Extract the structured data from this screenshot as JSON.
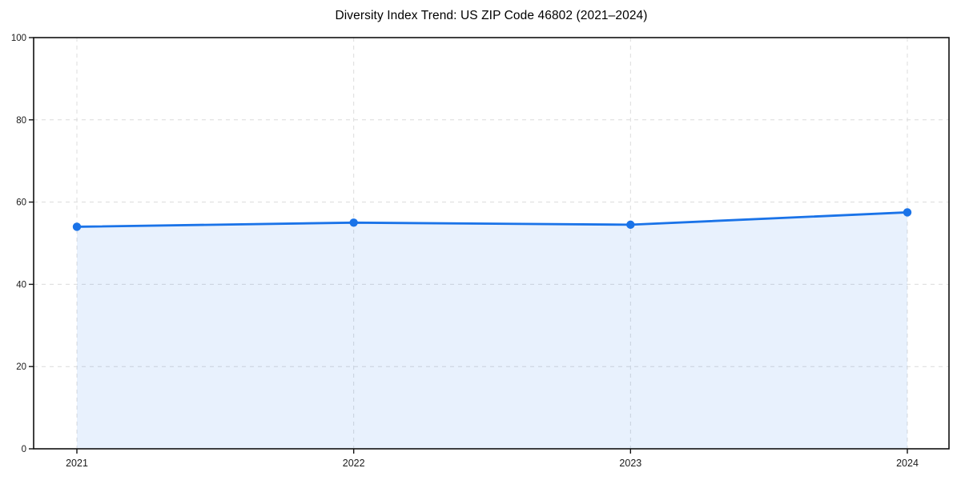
{
  "chart_data": {
    "type": "area",
    "title": "Diversity Index Trend: US ZIP Code 46802 (2021–2024)",
    "x": [
      2021,
      2022,
      2023,
      2024
    ],
    "xtick_labels": [
      "2021",
      "2022",
      "2023",
      "2024"
    ],
    "series": [
      {
        "name": "Diversity Index",
        "values": [
          54,
          55,
          54.5,
          57.5
        ]
      }
    ],
    "xlabel": "",
    "ylabel": "",
    "ylim": [
      0,
      100
    ],
    "yticks": [
      0,
      20,
      40,
      60,
      80,
      100
    ],
    "grid": "dashed",
    "legend": "none",
    "colors": {
      "line": "#1a73e8",
      "marker": "#1a73e8",
      "area_fill": "rgba(26,115,232,0.10)",
      "grid": "#dcdcdc",
      "spine": "#111111",
      "tick_text": "#1a1a1a",
      "title_text": "#000000",
      "background": "#ffffff"
    }
  }
}
